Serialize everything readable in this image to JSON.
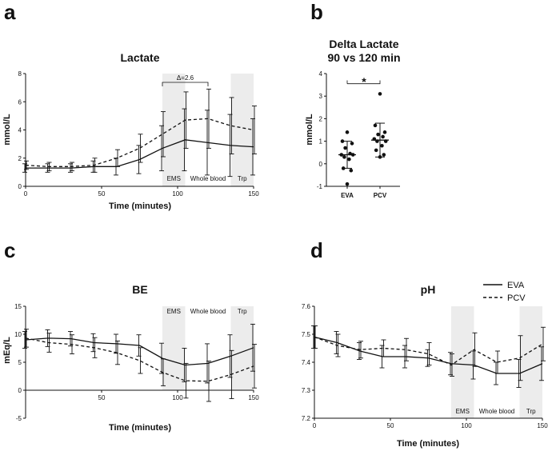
{
  "panels": [
    {
      "id": "a",
      "label": "a"
    },
    {
      "id": "b",
      "label": "b"
    },
    {
      "id": "c",
      "label": "c"
    },
    {
      "id": "d",
      "label": "d"
    }
  ],
  "legend": {
    "items": [
      {
        "name": "EVA",
        "style": "solid"
      },
      {
        "name": "PCV",
        "style": "dashed"
      }
    ]
  },
  "chart_data": [
    {
      "id": "a",
      "type": "line",
      "title": "Lactate",
      "xlabel": "Time (minutes)",
      "ylabel": "mmol/L",
      "xlim": [
        0,
        150
      ],
      "ylim": [
        0,
        8
      ],
      "xticks": [
        0,
        50,
        100,
        150
      ],
      "yticks": [
        0,
        2,
        4,
        6,
        8
      ],
      "segments": [
        {
          "label": "EMS",
          "x0": 90,
          "x1": 105,
          "shaded": true
        },
        {
          "label": "Whole blood",
          "x0": 105,
          "x1": 135,
          "shaded": false
        },
        {
          "label": "Trp",
          "x0": 135,
          "x1": 150,
          "shaded": true
        }
      ],
      "annotation": {
        "text": "Δ=2.6",
        "x0": 90,
        "x1": 120
      },
      "series": [
        {
          "name": "EVA",
          "style": "solid",
          "x": [
            0,
            15,
            30,
            45,
            60,
            75,
            90,
            105,
            120,
            135,
            150
          ],
          "y": [
            1.3,
            1.3,
            1.3,
            1.4,
            1.4,
            1.9,
            2.7,
            3.3,
            3.1,
            2.9,
            2.8
          ],
          "err": [
            0.3,
            0.3,
            0.3,
            0.4,
            0.6,
            1.0,
            1.6,
            2.2,
            2.3,
            2.2,
            2.0
          ]
        },
        {
          "name": "PCV",
          "style": "dashed",
          "x": [
            0,
            15,
            30,
            45,
            60,
            75,
            90,
            105,
            120,
            135,
            150
          ],
          "y": [
            1.5,
            1.4,
            1.4,
            1.5,
            2.0,
            2.7,
            3.7,
            4.7,
            4.8,
            4.3,
            4.0
          ],
          "err": [
            0.3,
            0.3,
            0.3,
            0.5,
            0.6,
            1.0,
            1.6,
            2.0,
            2.1,
            2.0,
            1.7
          ]
        }
      ]
    },
    {
      "id": "b",
      "type": "scatter",
      "title": "Delta Lactate",
      "subtitle": "90 vs 120 min",
      "ylabel": "mmol/L",
      "ylim": [
        -1,
        4
      ],
      "yticks": [
        -1,
        0,
        1,
        2,
        3,
        4
      ],
      "categories": [
        "EVA",
        "PCV"
      ],
      "significance": "*",
      "groups": [
        {
          "name": "EVA",
          "mean": 0.4,
          "sd": 0.6,
          "points": [
            1.4,
            1.0,
            0.9,
            0.7,
            0.45,
            0.4,
            0.4,
            0.3,
            0.2,
            -0.2,
            -0.3,
            -0.9
          ]
        },
        {
          "name": "PCV",
          "mean": 1.05,
          "sd": 0.75,
          "points": [
            3.1,
            1.7,
            1.4,
            1.3,
            1.2,
            1.1,
            1.0,
            1.0,
            0.8,
            0.6,
            0.4,
            0.3
          ]
        }
      ]
    },
    {
      "id": "c",
      "type": "line",
      "title": "BE",
      "xlabel": "Time (minutes)",
      "ylabel": "mEq/L",
      "xlim": [
        0,
        150
      ],
      "ylim": [
        -5,
        15
      ],
      "xticks": [
        50,
        100,
        150
      ],
      "yticks": [
        -5,
        0,
        5,
        10,
        15
      ],
      "segments": [
        {
          "label": "EMS",
          "x0": 90,
          "x1": 105,
          "shaded": true
        },
        {
          "label": "Whole blood",
          "x0": 105,
          "x1": 135,
          "shaded": false
        },
        {
          "label": "Trp",
          "x0": 135,
          "x1": 150,
          "shaded": true
        }
      ],
      "series": [
        {
          "name": "EVA",
          "style": "solid",
          "x": [
            0,
            15,
            30,
            45,
            60,
            75,
            90,
            105,
            120,
            135,
            150
          ],
          "y": [
            9.0,
            9.3,
            9.2,
            8.5,
            8.3,
            8.0,
            5.7,
            4.5,
            4.8,
            6.1,
            7.6
          ],
          "err": [
            1.5,
            1.5,
            1.3,
            1.6,
            1.7,
            1.9,
            2.7,
            3.0,
            3.5,
            3.8,
            4.2
          ]
        },
        {
          "name": "PCV",
          "style": "dashed",
          "x": [
            0,
            15,
            30,
            45,
            60,
            75,
            90,
            105,
            120,
            135,
            150
          ],
          "y": [
            9.3,
            8.5,
            8.2,
            7.6,
            6.7,
            5.3,
            3.2,
            1.7,
            1.6,
            2.8,
            4.3
          ],
          "err": [
            1.6,
            1.7,
            1.7,
            1.8,
            2.1,
            2.3,
            2.4,
            3.1,
            3.6,
            4.3,
            3.9
          ]
        }
      ]
    },
    {
      "id": "d",
      "type": "line",
      "title": "pH",
      "xlabel": "Time (minutes)",
      "xlim": [
        0,
        150
      ],
      "ylim": [
        7.2,
        7.6
      ],
      "xticks": [
        0,
        50,
        100,
        150
      ],
      "yticks": [
        7.2,
        7.3,
        7.4,
        7.5,
        7.6
      ],
      "ytick_labels": [
        "7.2",
        "7.3",
        "7.4",
        "7.5",
        "7.6"
      ],
      "segments": [
        {
          "label": "EMS",
          "x0": 90,
          "x1": 105,
          "shaded": true
        },
        {
          "label": "Whole blood",
          "x0": 105,
          "x1": 135,
          "shaded": false
        },
        {
          "label": "Trp",
          "x0": 135,
          "x1": 150,
          "shaded": true
        }
      ],
      "series": [
        {
          "name": "EVA",
          "style": "solid",
          "x": [
            0,
            15,
            30,
            45,
            60,
            75,
            90,
            105,
            120,
            135,
            150
          ],
          "y": [
            7.49,
            7.47,
            7.44,
            7.42,
            7.42,
            7.415,
            7.395,
            7.39,
            7.36,
            7.36,
            7.395
          ],
          "err": [
            0.04,
            0.04,
            0.03,
            0.04,
            0.04,
            0.03,
            0.04,
            0.05,
            0.04,
            0.05,
            0.06
          ]
        },
        {
          "name": "PCV",
          "style": "dashed",
          "x": [
            0,
            15,
            30,
            45,
            60,
            75,
            90,
            105,
            120,
            135,
            150
          ],
          "y": [
            7.49,
            7.46,
            7.445,
            7.45,
            7.445,
            7.43,
            7.39,
            7.445,
            7.4,
            7.415,
            7.465
          ],
          "err": [
            0.04,
            0.04,
            0.03,
            0.03,
            0.04,
            0.04,
            0.04,
            0.06,
            0.04,
            0.08,
            0.06
          ]
        }
      ]
    }
  ]
}
